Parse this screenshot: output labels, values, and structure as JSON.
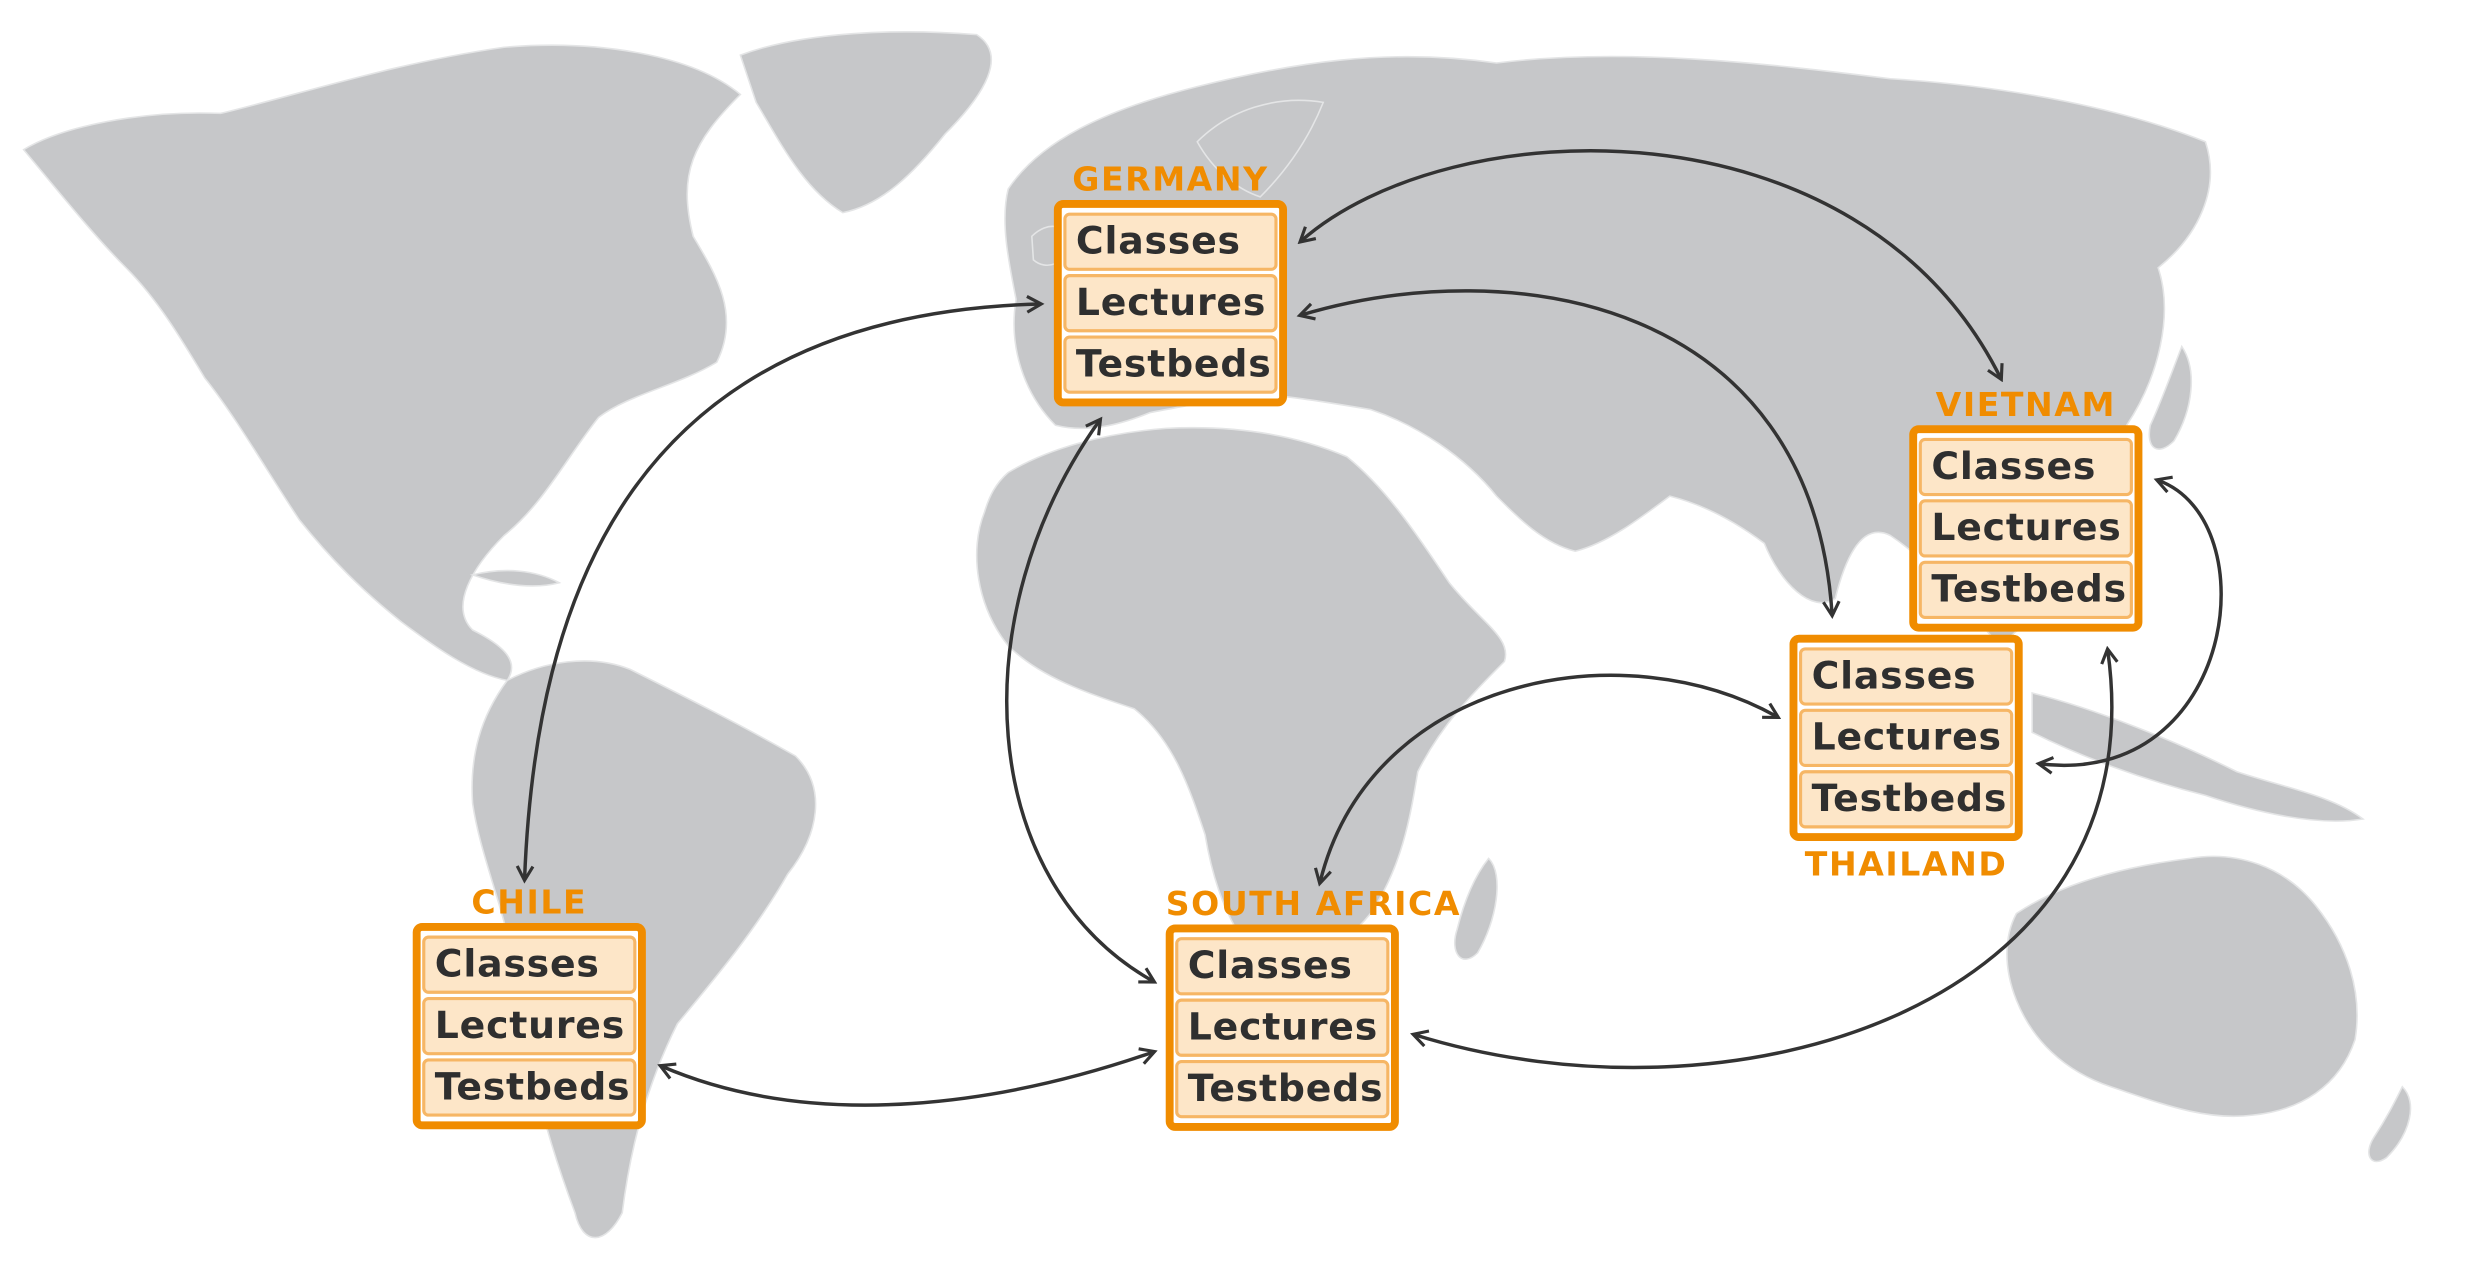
{
  "map": {
    "land_color": "#c6c7c9",
    "arrow_color": "#333333",
    "accent": "#f08c00"
  },
  "nodes": {
    "germany": {
      "country": "GERMANY",
      "items": [
        "Classes",
        "Lectures",
        "Testbeds"
      ]
    },
    "vietnam": {
      "country": "VIETNAM",
      "items": [
        "Classes",
        "Lectures",
        "Testbeds"
      ]
    },
    "thailand": {
      "country": "THAILAND",
      "items": [
        "Classes",
        "Lectures",
        "Testbeds"
      ]
    },
    "chile": {
      "country": "CHILE",
      "items": [
        "Classes",
        "Lectures",
        "Testbeds"
      ]
    },
    "south_africa": {
      "country": "SOUTH AFRICA",
      "items": [
        "Classes",
        "Lectures",
        "Testbeds"
      ]
    }
  }
}
